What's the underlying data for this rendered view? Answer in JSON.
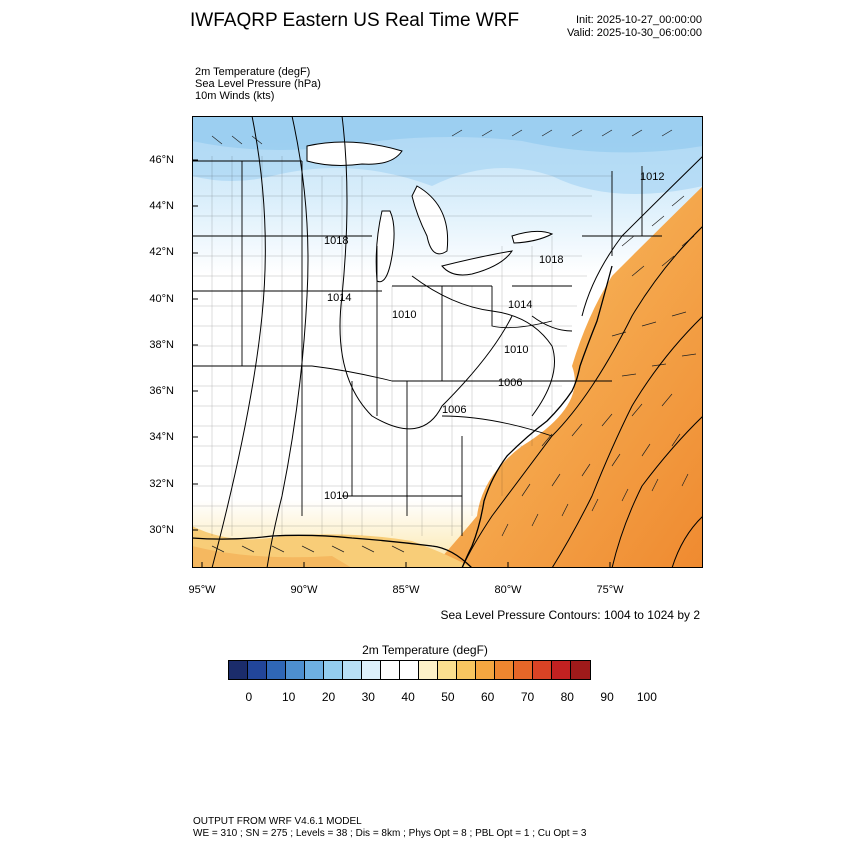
{
  "header": {
    "title": "IWFAQRP Eastern US Real Time WRF",
    "init": "Init: 2025-10-27_00:00:00",
    "valid": "Valid: 2025-10-30_06:00:00"
  },
  "fields": [
    "2m Temperature   (degF)",
    "Sea Level Pressure   (hPa)",
    "10m Winds   (kts)"
  ],
  "map": {
    "lat_labels": [
      "46°N",
      "44°N",
      "42°N",
      "40°N",
      "38°N",
      "36°N",
      "34°N",
      "32°N",
      "30°N"
    ],
    "lon_labels": [
      "95°W",
      "90°W",
      "85°W",
      "80°W",
      "75°W"
    ],
    "pressure_labels": [
      "1012",
      "1018",
      "1018",
      "1014",
      "1010",
      "1014",
      "1010",
      "1006",
      "1006",
      "1010"
    ]
  },
  "slp_note": "Sea Level Pressure Contours: 1004 to 1024 by 2",
  "colorbar": {
    "title": "2m Temperature  (degF)",
    "labels": [
      "0",
      "10",
      "20",
      "30",
      "40",
      "50",
      "60",
      "70",
      "80",
      "90",
      "100"
    ],
    "colors": [
      "#1b2c6b",
      "#22469a",
      "#2f67b7",
      "#4d8fd0",
      "#6eb0e2",
      "#93cdef",
      "#b8e0f6",
      "#ddf0fb",
      "#ffffff",
      "#ffffff",
      "#fdf1c8",
      "#fbdf8f",
      "#f8c560",
      "#f5a640",
      "#ef862f",
      "#e66628",
      "#d94325",
      "#c22121",
      "#9f1a1a"
    ]
  },
  "footer": {
    "line1": "OUTPUT FROM WRF V4.6.1 MODEL",
    "line2": "WE = 310 ; SN = 275 ; Levels = 38 ; Dis = 8km ; Phys Opt = 8 ; PBL Opt = 1 ; Cu Opt = 3"
  }
}
